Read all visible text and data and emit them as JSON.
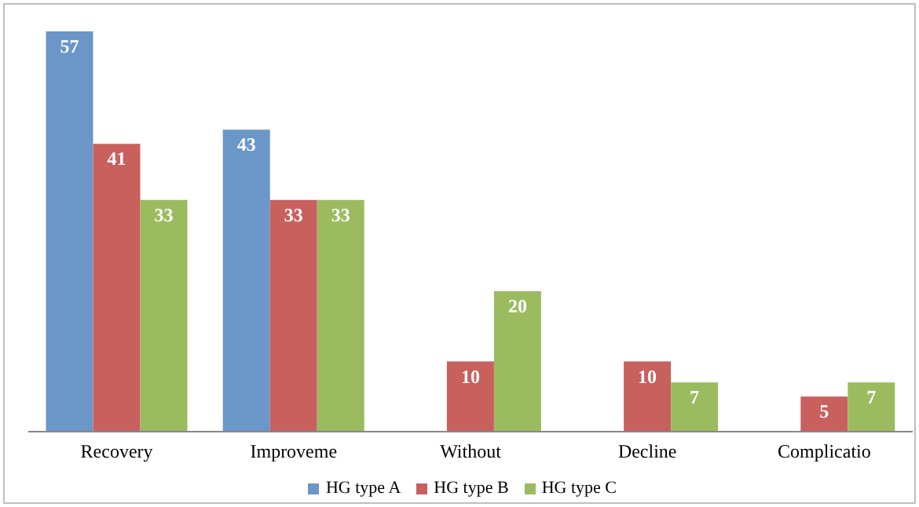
{
  "chart_data": {
    "type": "bar",
    "categories": [
      "Recovery",
      "Improveme",
      "Without",
      "Decline",
      "Complicatio"
    ],
    "series": [
      {
        "name": "HG type A",
        "color": "#6a96c8",
        "values": [
          57,
          43,
          null,
          null,
          null
        ]
      },
      {
        "name": "HG type B",
        "color": "#c8605e",
        "values": [
          41,
          33,
          10,
          10,
          5
        ]
      },
      {
        "name": "HG type C",
        "color": "#9bbb5f",
        "values": [
          33,
          33,
          20,
          7,
          7
        ]
      }
    ],
    "data_labels": true,
    "legend": "bottom",
    "grid": false
  }
}
